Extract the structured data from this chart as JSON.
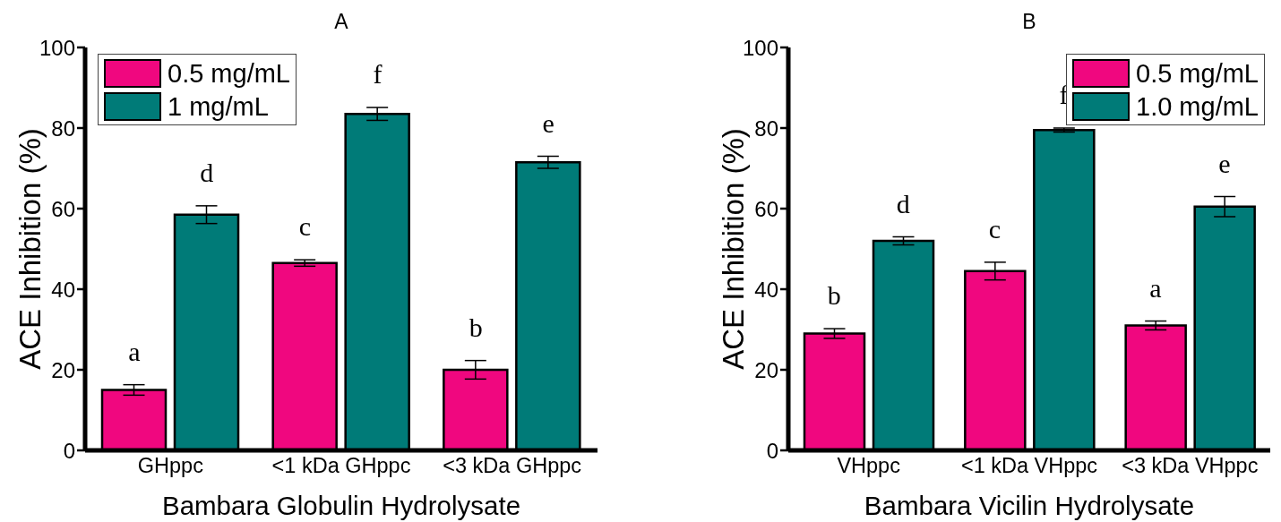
{
  "chart_data": [
    {
      "type": "bar",
      "title": "A",
      "xlabel": "Bambara Globulin Hydrolysate",
      "ylabel": "ACE Inhibition (%)",
      "categories": [
        "GHppc",
        "<1 kDa GHppc",
        "<3 kDa GHppc"
      ],
      "series": [
        {
          "name": "0.5 mg/mL",
          "color": "#f0077f",
          "values": [
            15,
            46.5,
            20
          ],
          "errors": [
            1.3,
            0.8,
            2.3
          ]
        },
        {
          "name": "1 mg/mL",
          "color": "#007b78",
          "values": [
            58.5,
            83.5,
            71.5
          ],
          "errors": [
            2.2,
            1.6,
            1.5
          ]
        }
      ],
      "ylim": [
        0,
        100
      ],
      "yticks": [
        0,
        20,
        40,
        60,
        80,
        100
      ],
      "legend": "top left",
      "annotations": [
        "a",
        "d",
        "c",
        "f",
        "b",
        "e"
      ]
    },
    {
      "type": "bar",
      "title": "B",
      "xlabel": "Bambara Vicilin Hydrolysate",
      "ylabel": "ACE Inhibition (%)",
      "categories": [
        "VHppc",
        "<1 kDa VHppc",
        "<3 kDa VHppc"
      ],
      "series": [
        {
          "name": "0.5 mg/mL",
          "color": "#f0077f",
          "values": [
            29,
            44.5,
            31
          ],
          "errors": [
            1.2,
            2.2,
            1.1
          ]
        },
        {
          "name": "1.0 mg/mL",
          "color": "#007b78",
          "values": [
            52,
            79.5,
            60.5
          ],
          "errors": [
            1.0,
            0.5,
            2.5
          ]
        }
      ],
      "ylim": [
        0,
        100
      ],
      "yticks": [
        0,
        20,
        40,
        60,
        80,
        100
      ],
      "legend": "top right",
      "annotations": [
        "b",
        "d",
        "c",
        "f",
        "a",
        "e"
      ]
    }
  ]
}
